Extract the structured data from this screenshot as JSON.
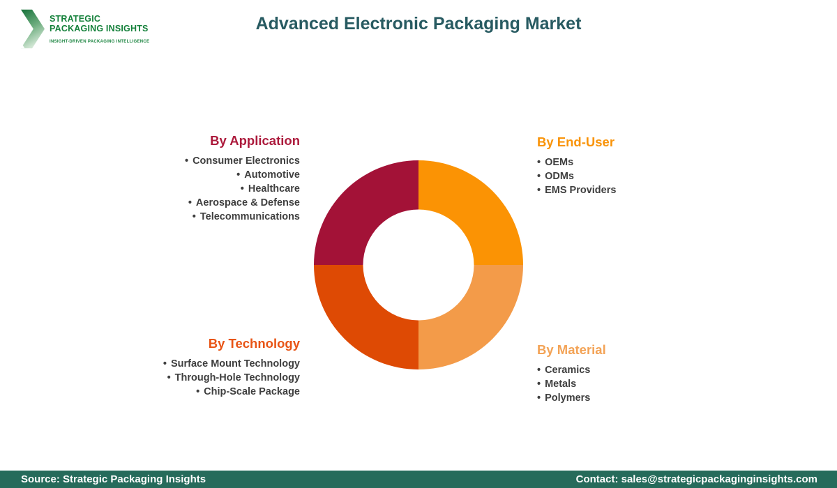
{
  "title": "Advanced Electronic Packaging Market",
  "title_color": "#275A61",
  "logo": {
    "line1": "STRATEGIC",
    "line2": "PACKAGING INSIGHTS",
    "tagline": "INSIGHT-DRIVEN PACKAGING INTELLIGENCE",
    "green": "#15813B"
  },
  "segments": {
    "application": {
      "heading": "By Application",
      "color": "#AC1A3C",
      "items": [
        "Consumer Electronics",
        "Automotive",
        "Healthcare",
        "Aerospace & Defense",
        "Telecommunications"
      ]
    },
    "end_user": {
      "heading": "By End-User",
      "color": "#F9940A",
      "items": [
        "OEMs",
        "ODMs",
        "EMS Providers"
      ]
    },
    "technology": {
      "heading": "By Technology",
      "color": "#E85415",
      "items": [
        "Surface Mount Technology",
        "Through-Hole Technology",
        "Chip-Scale Package"
      ]
    },
    "material": {
      "heading": "By Material",
      "color": "#F3A356",
      "items": [
        "Ceramics",
        "Metals",
        "Polymers"
      ]
    }
  },
  "chart_data": {
    "type": "pie",
    "donut": true,
    "inner_radius_ratio": 0.53,
    "start_angle_deg": -90,
    "direction": "clockwise",
    "title": "Advanced Electronic Packaging Market",
    "legend_position": "none",
    "slices": [
      {
        "label": "By End-User",
        "value": 25,
        "color": "#FB9304"
      },
      {
        "label": "By Material",
        "value": 25,
        "color": "#F39B49"
      },
      {
        "label": "By Technology",
        "value": 25,
        "color": "#DE4A04"
      },
      {
        "label": "By Application",
        "value": 25,
        "color": "#A31237"
      }
    ]
  },
  "footer": {
    "source": "Source: Strategic Packaging Insights",
    "contact": "Contact: sales@strategicpackaginginsights.com",
    "bg": "#266B5B"
  }
}
